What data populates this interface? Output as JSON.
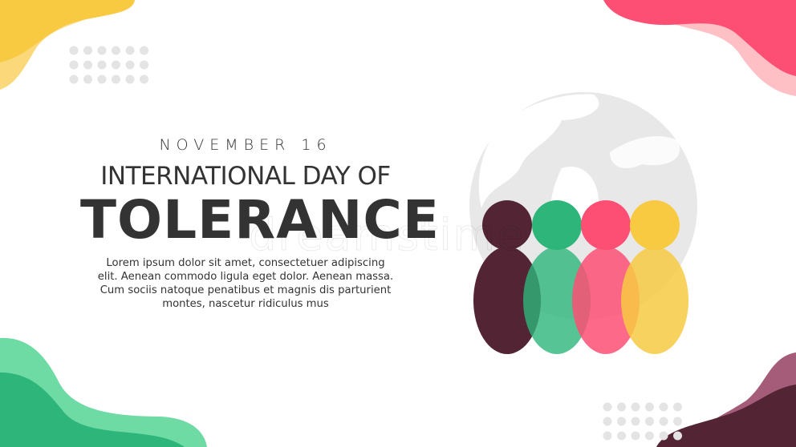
{
  "poster": {
    "date": "NOVEMBER 16",
    "subtitle": "INTERNATIONAL DAY OF",
    "title": "TOLERANCE",
    "body": "Lorem ipsum dolor sit amet, consectetuer adipiscing elit. Aenean commodo ligula eget dolor. Aenean massa. Cum sociis natoque penatibus et magnis dis parturient montes, nascetur ridiculus mus",
    "watermark": "dreamstime"
  },
  "colors": {
    "maroon": "#522434",
    "green": "#2db57a",
    "pink": "#fd4f74",
    "yellow": "#f7ca42",
    "globe": "#e6e6e6",
    "text": "#333333"
  },
  "icons": [
    "globe-icon",
    "people-icon"
  ]
}
